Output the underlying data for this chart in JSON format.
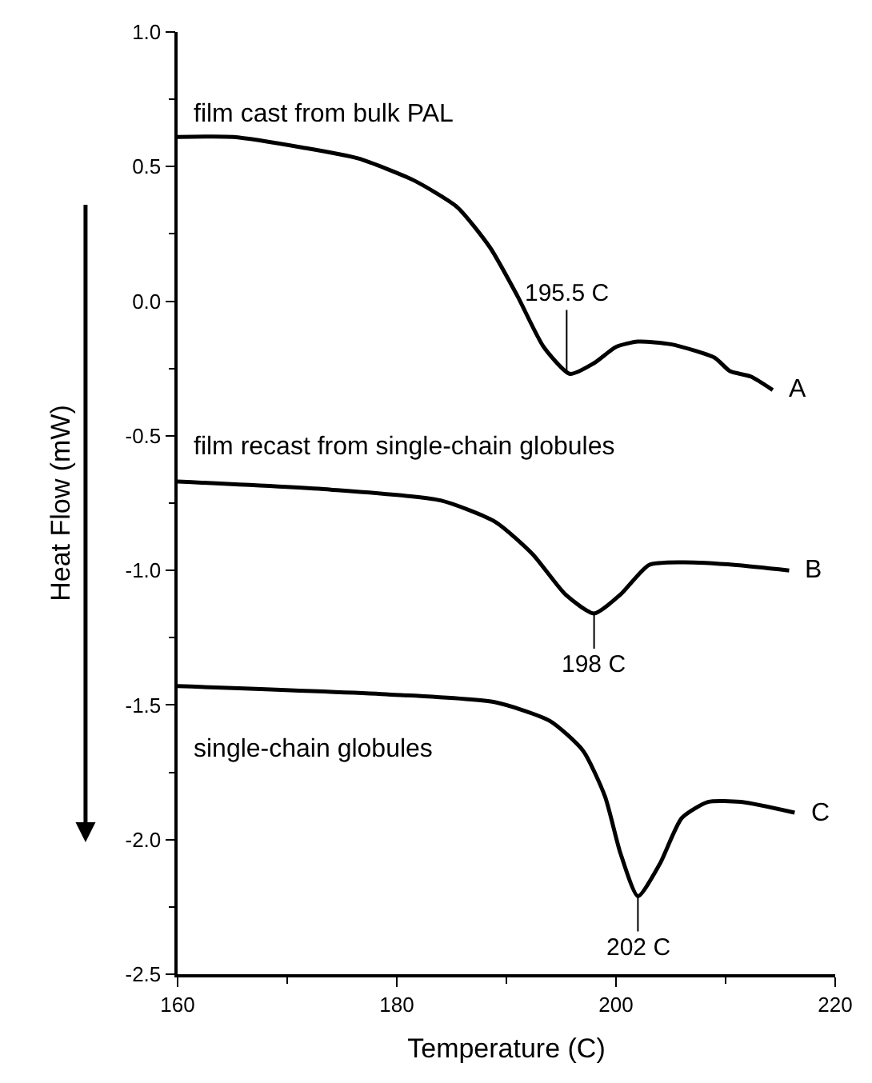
{
  "chart_data": {
    "type": "line",
    "xlabel": "Temperature (C)",
    "ylabel": "Heat Flow (mW)",
    "xlim": [
      160,
      220
    ],
    "xticks": [
      160,
      180,
      200,
      220
    ],
    "ylim": [
      -2.5,
      1.0
    ],
    "yticks": [
      {
        "value": -2.5,
        "label": "-2.5"
      },
      {
        "value": -2.0,
        "label": "-2.0"
      },
      {
        "value": -1.5,
        "label": "-1.5"
      },
      {
        "value": -1.0,
        "label": "-1.0"
      },
      {
        "value": -0.5,
        "label": "-0.5"
      },
      {
        "value": 0.0,
        "label": "0.0"
      },
      {
        "value": 0.5,
        "label": "0.5"
      },
      {
        "value": 1.0,
        "label": "1.0"
      }
    ],
    "legend": false,
    "marker": "none",
    "line_style": "solid",
    "series": [
      {
        "name": "A",
        "color": "#000000",
        "x": [
          160,
          165.1,
          171.5,
          176.5,
          181.5,
          185.5,
          188.5,
          191,
          193.4,
          195.8,
          198,
          200,
          202,
          205,
          209,
          210.4,
          212.3,
          214.3
        ],
        "values": [
          0.61,
          0.61,
          0.57,
          0.53,
          0.45,
          0.35,
          0.2,
          0.02,
          -0.17,
          -0.27,
          -0.23,
          -0.17,
          -0.15,
          -0.16,
          -0.21,
          -0.26,
          -0.28,
          -0.33
        ]
      },
      {
        "name": "B",
        "color": "#000000",
        "x": [
          160,
          174,
          184,
          189,
          192.4,
          195.4,
          198,
          200.4,
          203,
          206,
          211,
          215.8
        ],
        "values": [
          -0.67,
          -0.7,
          -0.74,
          -0.82,
          -0.94,
          -1.09,
          -1.16,
          -1.09,
          -0.98,
          -0.97,
          -0.98,
          -1.0
        ]
      },
      {
        "name": "C",
        "color": "#000000",
        "x": [
          160,
          179,
          189,
          194,
          197,
          199,
          200.4,
          202,
          204,
          206,
          208.4,
          211.4,
          216.3
        ],
        "values": [
          -1.43,
          -1.46,
          -1.49,
          -1.56,
          -1.67,
          -1.84,
          -2.05,
          -2.21,
          -2.09,
          -1.92,
          -1.86,
          -1.86,
          -1.9
        ]
      }
    ],
    "annotations": [
      "film cast from bulk PAL",
      "film recast from single-chain globules",
      "single-chain globules",
      {
        "text": "195.5 C",
        "x": 195.5,
        "y": -0.27
      },
      {
        "text": "198 C",
        "x": 198,
        "y": -1.16
      },
      {
        "text": "202 C",
        "x": 202,
        "y": -2.21
      }
    ]
  }
}
